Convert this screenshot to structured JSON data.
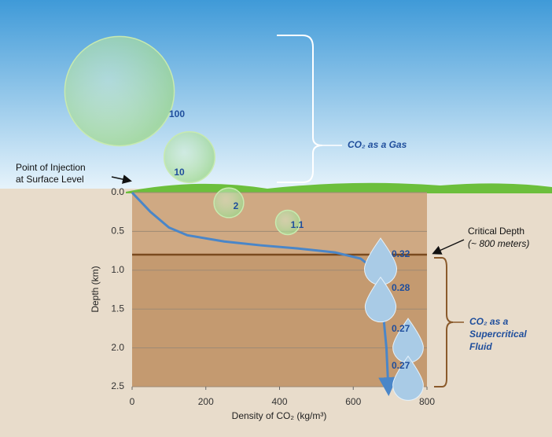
{
  "chart_data": {
    "type": "line",
    "xlabel": "Density of CO₂ (kg/m³)",
    "ylabel": "Depth (km)",
    "xlim": [
      0,
      800
    ],
    "xticks": [
      0,
      200,
      400,
      600,
      800
    ],
    "ylim": [
      0,
      2.5
    ],
    "yticks": [
      {
        "value": 0,
        "label": "0.0"
      },
      {
        "value": 0.5,
        "label": "0.5"
      },
      {
        "value": 1,
        "label": "1.0"
      },
      {
        "value": 1.5,
        "label": "1.5"
      },
      {
        "value": 2,
        "label": "2.0"
      },
      {
        "value": 2.5,
        "label": "2.5"
      }
    ],
    "y_inverted": true,
    "grid": true,
    "series": [
      {
        "color": "#4a86c8",
        "x": [
          0,
          20,
          50,
          100,
          150,
          250,
          350,
          450,
          550,
          620,
          660,
          680,
          690,
          695
        ],
        "values": [
          0,
          0.1,
          0.25,
          0.45,
          0.55,
          0.63,
          0.68,
          0.72,
          0.77,
          0.85,
          1.0,
          1.5,
          2.0,
          2.5
        ]
      }
    ],
    "critical_depth": 0.8,
    "gas_volumes": [
      100,
      10,
      2,
      1.1
    ],
    "fluid_volumes": [
      0.32,
      0.28,
      0.27,
      0.27
    ],
    "annotations": {
      "injection": [
        "Point of Injection",
        "at Surface Level"
      ],
      "gas": "CO₂ as a Gas",
      "critical": [
        "Critical Depth",
        "(~ 800 meters)"
      ],
      "fluid": [
        "CO₂ as a",
        "Supercritical",
        "Fluid"
      ]
    }
  }
}
